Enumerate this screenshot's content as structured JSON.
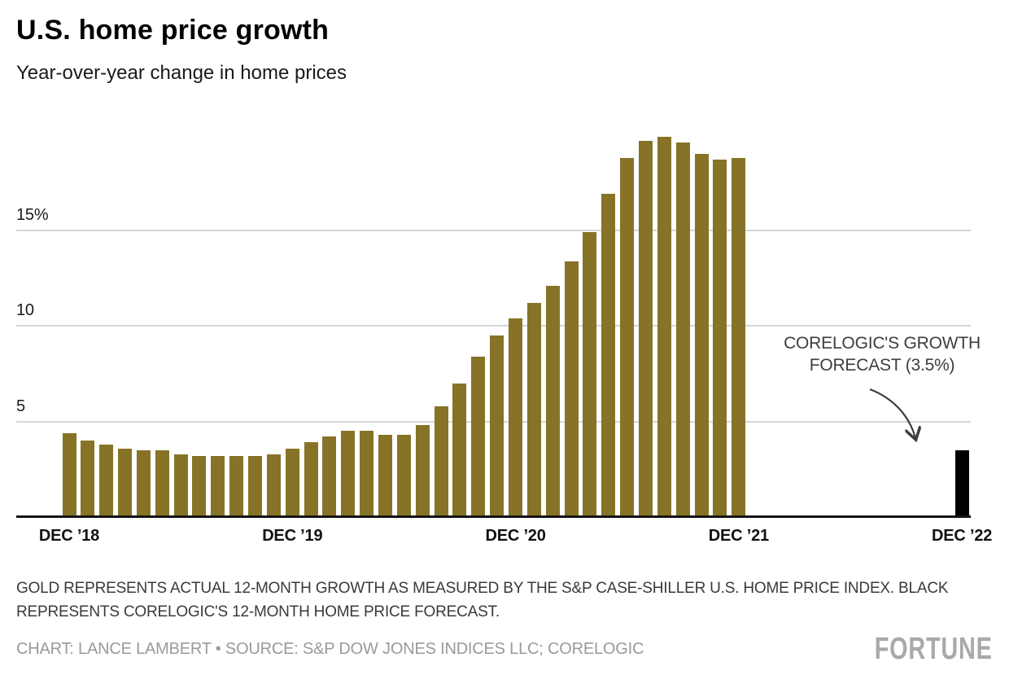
{
  "header": {
    "title": "U.S. home price growth",
    "subtitle": "Year-over-year change in home prices"
  },
  "annotation": {
    "lines": [
      "CORELOGIC'S GROWTH",
      "FORECAST (3.5%)"
    ]
  },
  "footer": {
    "notes_lines": [
      "GOLD REPRESENTS ACTUAL 12-MONTH GROWTH AS MEASURED BY THE S&P CASE-SHILLER U.S. HOME PRICE INDEX. BLACK",
      "REPRESENTS CORELOGIC'S 12-MONTH HOME PRICE FORECAST."
    ],
    "credit": "CHART: LANCE LAMBERT • SOURCE: S&P DOW JONES INDICES LLC; CORELOGIC",
    "logo": "FORTUNE"
  },
  "colors": {
    "gold": "#877328",
    "forecast_black": "#000000",
    "gridline": "#d6d6d6",
    "axis_line": "#141414",
    "annotation_text": "#3d3d3d",
    "notes_text": "#3a3a3a",
    "credit_text": "#9a9a9a",
    "logo_gray": "#a9a9a9"
  },
  "chart_data": {
    "type": "bar",
    "title": "U.S. home price growth",
    "subtitle": "Year-over-year change in home prices",
    "unit": "%",
    "ylim": [
      0,
      20
    ],
    "grid": "horizontal",
    "y_ticks": [
      {
        "value": 5,
        "label": "5"
      },
      {
        "value": 10,
        "label": "10"
      },
      {
        "value": 15,
        "label": "15%"
      }
    ],
    "x_axis_ticks": [
      {
        "label": "DEC ’18",
        "month_index": 0
      },
      {
        "label": "DEC ’19",
        "month_index": 12
      },
      {
        "label": "DEC ’20",
        "month_index": 24
      },
      {
        "label": "DEC ’21",
        "month_index": 36
      },
      {
        "label": "DEC ’22",
        "month_index": 48
      }
    ],
    "series": [
      {
        "id": "actual",
        "name": "Actual 12-month growth (S&P Case-Shiller U.S. Home Price Index)",
        "color": "#877328",
        "months": [
          "Dec '18",
          "Jan '19",
          "Feb '19",
          "Mar '19",
          "Apr '19",
          "May '19",
          "Jun '19",
          "Jul '19",
          "Aug '19",
          "Sep '19",
          "Oct '19",
          "Nov '19",
          "Dec '19",
          "Jan '20",
          "Feb '20",
          "Mar '20",
          "Apr '20",
          "May '20",
          "Jun '20",
          "Jul '20",
          "Aug '20",
          "Sep '20",
          "Oct '20",
          "Nov '20",
          "Dec '20",
          "Jan '21",
          "Feb '21",
          "Mar '21",
          "Apr '21",
          "May '21",
          "Jun '21",
          "Jul '21",
          "Aug '21",
          "Sep '21",
          "Oct '21",
          "Nov '21",
          "Dec '21"
        ],
        "values": [
          4.4,
          4.0,
          3.8,
          3.6,
          3.5,
          3.5,
          3.3,
          3.2,
          3.2,
          3.2,
          3.2,
          3.3,
          3.6,
          3.9,
          4.2,
          4.5,
          4.5,
          4.3,
          4.3,
          4.8,
          5.8,
          7.0,
          8.4,
          9.5,
          10.4,
          11.2,
          12.1,
          13.4,
          14.9,
          16.9,
          18.8,
          19.7,
          19.9,
          19.6,
          19.0,
          18.7,
          18.8
        ]
      },
      {
        "id": "forecast",
        "name": "CoreLogic's 12-month home price forecast",
        "color": "#000000",
        "months": [
          "Dec '22"
        ],
        "month_indices": [
          48
        ],
        "values": [
          3.5
        ]
      }
    ]
  }
}
